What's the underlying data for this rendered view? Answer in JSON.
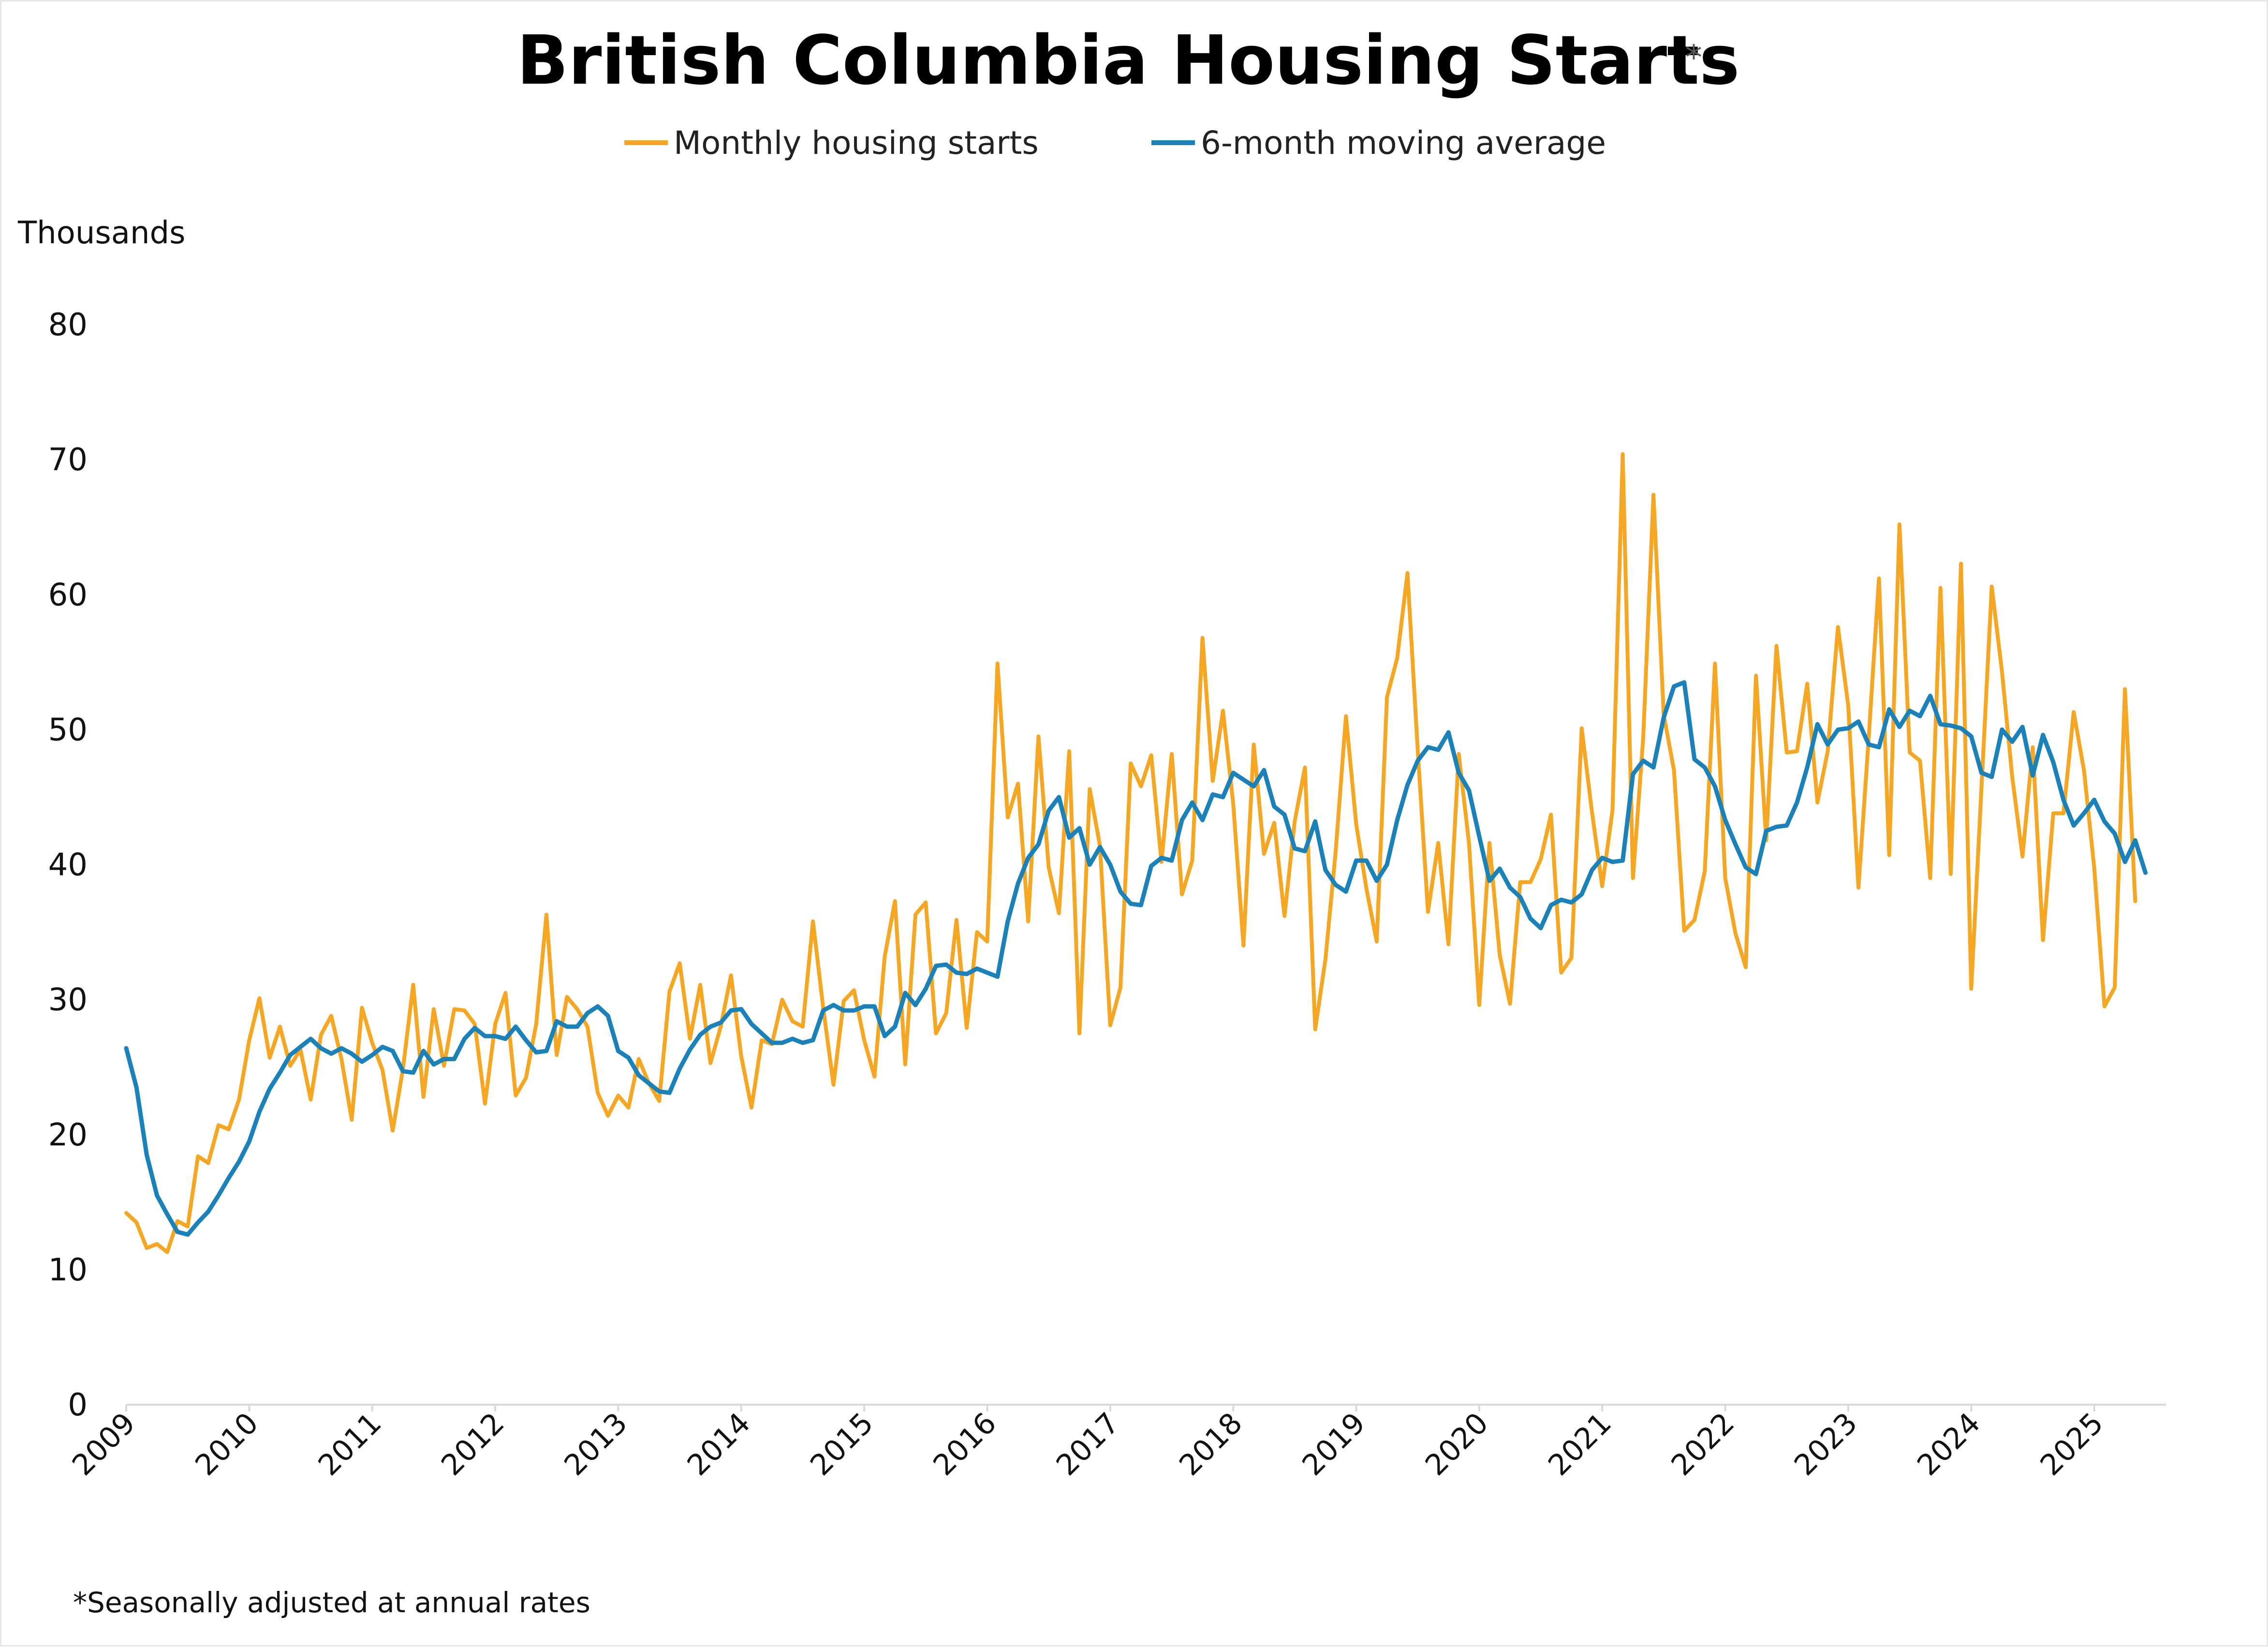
{
  "title": "British Columbia Housing Starts",
  "title_mark": "*",
  "footnote": "*Seasonally adjusted at annual rates",
  "chart_data": {
    "type": "line",
    "title": "British Columbia Housing Starts",
    "ylabel": "Thousands",
    "xlabel": "",
    "ylim": [
      0,
      80
    ],
    "yticks": [
      "0",
      "10",
      "20",
      "30",
      "40",
      "50",
      "60",
      "70",
      "80"
    ],
    "xlim": [
      2009.0,
      2025.5833
    ],
    "xticks": [
      "2009",
      "2010",
      "2011",
      "2012",
      "2013",
      "2014",
      "2015",
      "2016",
      "2017",
      "2018",
      "2019",
      "2020",
      "2021",
      "2022",
      "2023",
      "2024",
      "2025"
    ],
    "grid": false,
    "legend": "top-center",
    "series": [
      {
        "name": "Monthly housing starts",
        "color": "#f5a623",
        "x_start": "2009-01",
        "values": [
          14.2,
          13.5,
          11.6,
          11.9,
          11.3,
          13.6,
          13.2,
          18.4,
          17.9,
          20.7,
          20.4,
          22.6,
          27.0,
          30.1,
          25.7,
          28.0,
          25.1,
          26.3,
          22.6,
          27.4,
          28.8,
          25.6,
          21.1,
          29.4,
          26.8,
          24.8,
          20.3,
          24.9,
          31.1,
          22.8,
          29.3,
          25.1,
          29.3,
          29.2,
          28.2,
          22.3,
          28.2,
          30.5,
          22.9,
          24.2,
          28.2,
          36.3,
          25.9,
          30.2,
          29.3,
          28.0,
          23.1,
          21.4,
          22.9,
          22.0,
          25.6,
          23.8,
          22.5,
          30.6,
          32.7,
          27.1,
          31.1,
          25.3,
          28.0,
          31.8,
          25.8,
          22.0,
          27.0,
          26.7,
          30.0,
          28.4,
          28.0,
          35.8,
          29.4,
          23.7,
          29.9,
          30.7,
          27.0,
          24.3,
          33.2,
          37.3,
          25.2,
          36.3,
          37.2,
          27.5,
          29.0,
          35.9,
          27.9,
          35.0,
          34.3,
          54.9,
          43.5,
          46.0,
          35.8,
          49.5,
          39.8,
          36.4,
          48.4,
          27.5,
          45.6,
          41.4,
          28.1,
          30.9,
          47.5,
          45.8,
          48.1,
          40.2,
          48.2,
          37.8,
          40.3,
          56.8,
          46.2,
          51.4,
          44.5,
          34.0,
          48.9,
          40.8,
          43.1,
          36.2,
          43.2,
          47.2,
          27.8,
          33.0,
          41.0,
          51.0,
          43.0,
          38.2,
          34.3,
          52.4,
          55.3,
          61.6,
          48.5,
          36.5,
          41.6,
          34.1,
          48.2,
          41.6,
          29.6,
          41.6,
          33.3,
          29.7,
          38.7,
          38.7,
          40.4,
          43.7,
          32.0,
          33.1,
          50.1,
          43.9,
          38.4,
          44.0,
          70.4,
          39.0,
          49.4,
          67.4,
          51.1,
          47.0,
          35.1,
          35.9,
          39.5,
          54.9,
          39.0,
          34.9,
          32.4,
          54.0,
          41.8,
          56.2,
          48.3,
          48.4,
          53.4,
          44.6,
          48.4,
          57.6,
          51.8,
          38.3,
          49.4,
          61.2,
          40.7,
          65.2,
          48.3,
          47.7,
          39.0,
          60.5,
          39.3,
          62.3,
          30.8,
          45.7,
          60.6,
          54.3,
          46.5,
          40.6,
          48.7,
          34.4,
          43.8,
          43.8,
          51.3,
          47.0,
          39.8,
          29.5,
          30.9,
          53.0,
          37.3
        ]
      },
      {
        "name": "6-month moving average",
        "color": "#1a82b8",
        "x_start": "2009-01",
        "values": [
          26.4,
          23.5,
          18.5,
          15.5,
          14.1,
          12.8,
          12.6,
          13.5,
          14.3,
          15.5,
          16.8,
          18.0,
          19.5,
          21.7,
          23.4,
          24.6,
          25.9,
          26.5,
          27.1,
          26.4,
          26.0,
          26.4,
          26.0,
          25.4,
          25.9,
          26.5,
          26.2,
          24.7,
          24.6,
          26.2,
          25.2,
          25.6,
          25.6,
          27.1,
          27.9,
          27.3,
          27.3,
          27.1,
          28.0,
          27.0,
          26.1,
          26.2,
          28.4,
          28.0,
          28.0,
          29.0,
          29.5,
          28.8,
          26.2,
          25.7,
          24.4,
          23.8,
          23.2,
          23.1,
          24.9,
          26.3,
          27.4,
          28.0,
          28.3,
          29.2,
          29.3,
          28.2,
          27.5,
          26.8,
          26.8,
          27.1,
          26.8,
          27.0,
          29.2,
          29.6,
          29.2,
          29.2,
          29.5,
          29.5,
          27.3,
          28.0,
          30.5,
          29.6,
          30.8,
          32.5,
          32.6,
          32.0,
          31.9,
          32.3,
          32.0,
          31.7,
          35.8,
          38.6,
          40.5,
          41.5,
          44.0,
          45.0,
          42.0,
          42.7,
          40.0,
          41.3,
          40.0,
          38.0,
          37.1,
          37.0,
          39.9,
          40.5,
          40.3,
          43.3,
          44.6,
          43.3,
          45.2,
          45.0,
          46.8,
          46.3,
          45.8,
          47.0,
          44.3,
          43.7,
          41.2,
          41.0,
          43.2,
          39.6,
          38.5,
          38.0,
          40.3,
          40.3,
          38.8,
          40.0,
          43.3,
          45.9,
          47.7,
          48.7,
          48.5,
          49.8,
          46.8,
          45.5,
          42.1,
          38.8,
          39.7,
          38.3,
          37.6,
          36.0,
          35.3,
          37.0,
          37.4,
          37.2,
          37.8,
          39.6,
          40.5,
          40.2,
          40.3,
          46.7,
          47.7,
          47.2,
          50.9,
          53.2,
          53.5,
          47.8,
          47.2,
          45.8,
          43.3,
          41.5,
          39.8,
          39.3,
          42.5,
          42.8,
          42.9,
          44.6,
          47.2,
          50.4,
          48.9,
          50.0,
          50.1,
          50.6,
          48.9,
          48.7,
          51.5,
          50.2,
          51.4,
          51.0,
          52.5,
          50.4,
          50.3,
          50.1,
          49.5,
          46.8,
          46.5,
          50.0,
          49.1,
          50.2,
          46.6,
          49.6,
          47.6,
          44.8,
          42.9,
          43.8,
          44.8,
          43.2,
          42.3,
          40.2,
          41.8,
          39.4
        ]
      }
    ]
  }
}
